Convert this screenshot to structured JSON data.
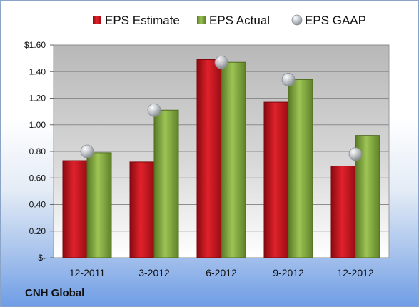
{
  "company": "CNH Global",
  "chart_data": {
    "type": "bar",
    "categories": [
      "12-2011",
      "3-2012",
      "6-2012",
      "9-2012",
      "12-2012"
    ],
    "series": [
      {
        "name": "EPS Estimate",
        "type": "bar",
        "color": "#c0101a",
        "values": [
          0.73,
          0.72,
          1.49,
          1.17,
          0.69
        ]
      },
      {
        "name": "EPS Actual",
        "type": "bar",
        "color": "#7aa13a",
        "values": [
          0.79,
          1.11,
          1.47,
          1.34,
          0.92
        ]
      },
      {
        "name": "EPS GAAP",
        "type": "scatter",
        "color": "#b8bcc4",
        "values": [
          0.8,
          1.11,
          1.47,
          1.34,
          0.78
        ]
      }
    ],
    "ylim": [
      0,
      1.6
    ],
    "yticks": [
      0,
      0.2,
      0.4,
      0.6,
      0.8,
      1.0,
      1.2,
      1.4,
      1.6
    ],
    "ytick_labels": [
      "$-",
      "0.20",
      "0.40",
      "0.60",
      "0.80",
      "1.00",
      "1.20",
      "1.40",
      "$1.60"
    ],
    "grid": true,
    "legend_position": "top"
  }
}
